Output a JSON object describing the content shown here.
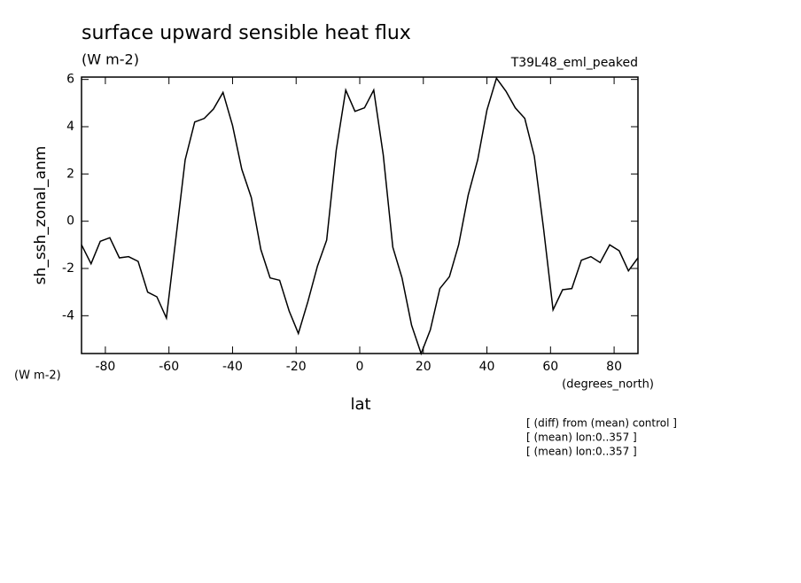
{
  "chart_data": {
    "type": "line",
    "title": "surface upward sensible heat flux",
    "units": "(W m-2)",
    "dataset": "T39L48_eml_peaked",
    "ylabel": "sh_ssh_zonal_anm",
    "xlabel": "lat",
    "xunits": "(degrees_north)",
    "notes": [
      "[ (diff) from (mean) control ]",
      "[ (mean) lon:0..357 ]",
      "[ (mean) lon:0..357 ]"
    ],
    "x": [
      -87.5,
      -84.5,
      -81.6,
      -78.6,
      -75.6,
      -72.7,
      -69.7,
      -66.7,
      -63.8,
      -60.8,
      -57.8,
      -54.9,
      -51.9,
      -48.9,
      -46.0,
      -43.0,
      -40.0,
      -37.1,
      -34.1,
      -31.1,
      -28.2,
      -25.2,
      -22.2,
      -19.3,
      -16.3,
      -13.3,
      -10.4,
      -7.4,
      -4.4,
      -1.5,
      1.5,
      4.4,
      7.4,
      10.4,
      13.3,
      16.3,
      19.3,
      22.2,
      25.2,
      28.2,
      31.1,
      34.1,
      37.1,
      40.0,
      43.0,
      46.0,
      48.9,
      51.9,
      54.9,
      57.8,
      60.8,
      63.8,
      66.7,
      69.7,
      72.7,
      75.6,
      78.6,
      81.6,
      84.5,
      87.5
    ],
    "values": [
      -1.0,
      -1.8,
      -0.85,
      -0.7,
      -1.55,
      -1.5,
      -1.7,
      -3.0,
      -3.2,
      -4.1,
      -0.7,
      2.6,
      4.2,
      4.35,
      4.75,
      5.45,
      4.05,
      2.2,
      1.0,
      -1.2,
      -2.4,
      -2.5,
      -3.8,
      -4.75,
      -3.4,
      -1.9,
      -0.8,
      3.0,
      5.55,
      4.65,
      4.8,
      5.55,
      2.8,
      -1.1,
      -2.4,
      -4.4,
      -5.6,
      -4.6,
      -2.85,
      -2.35,
      -1.0,
      1.1,
      2.6,
      4.7,
      6.05,
      5.5,
      4.8,
      4.35,
      2.75,
      -0.3,
      -3.75,
      -2.9,
      -2.85,
      -1.65,
      -1.5,
      -1.75,
      -1.0,
      -1.25,
      -2.1,
      -1.55
    ],
    "color": "#000000",
    "xlim": [
      -87.5,
      87.5
    ],
    "xticks": [
      -80,
      -60,
      -40,
      -20,
      0,
      20,
      40,
      60,
      80
    ],
    "ylim": [
      -5.6,
      6.1
    ],
    "yticks": [
      -4,
      -2,
      0,
      2,
      4,
      6
    ]
  }
}
